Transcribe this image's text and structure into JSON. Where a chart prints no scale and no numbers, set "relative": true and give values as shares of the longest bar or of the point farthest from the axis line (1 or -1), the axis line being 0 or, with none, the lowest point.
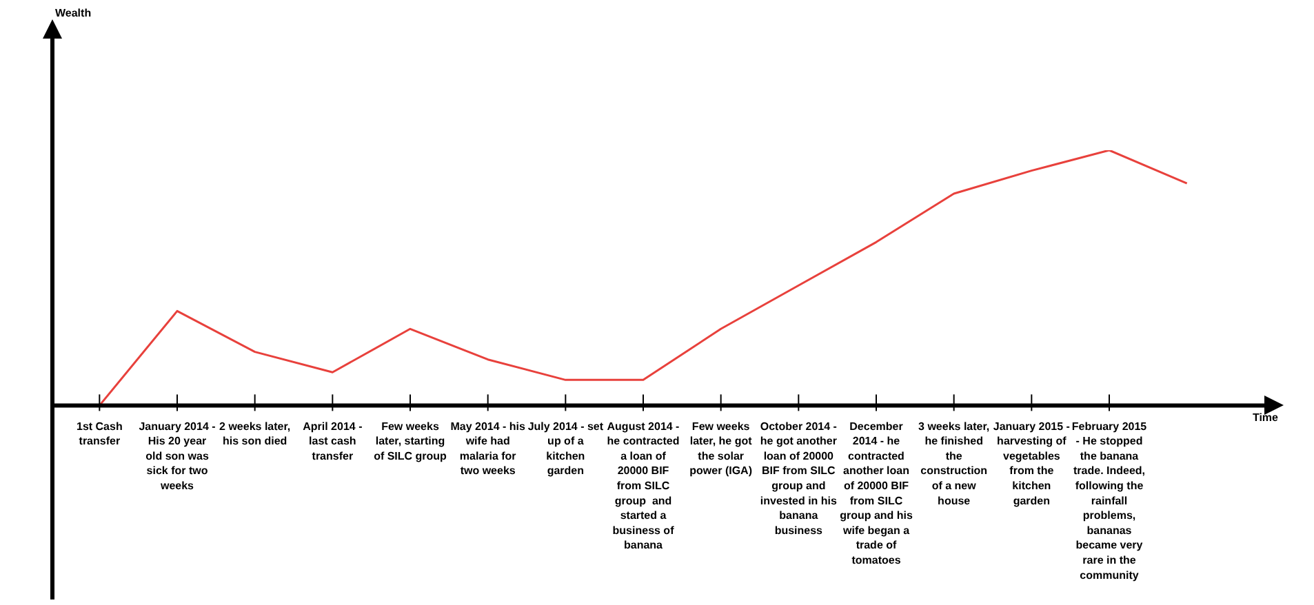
{
  "chart_data": {
    "type": "line",
    "relative": true,
    "xlabel": "Time",
    "annotations": [
      "Wealth"
    ],
    "grid": false,
    "legend": false,
    "marker": "none",
    "line_style": "solid",
    "categories": [
      "1st Cash transfer",
      "January 2014 - His 20 year old son was sick for two weeks",
      "2 weeks later, his son died",
      "April 2014 - last cash transfer",
      "Few weeks later, starting of SILC group",
      "May 2014 - his wife had malaria for two weeks",
      "July 2014 - set up of a kitchen garden",
      "August 2014 - he contracted a loan of 20000 BIF from SILC group  and started a business of banana",
      "Few weeks later, he got the solar power (IGA)",
      "October 2014 - he got another loan of 20000 BIF from SILC group and invested in his banana business",
      "December 2014 - he contracted another loan of 20000 BIF from SILC group and his wife began a trade of tomatoes",
      "3 weeks later, he finished the construction of a new house",
      "January 2015 - harvesting of vegetables from the kitchen garden",
      "February 2015 - He stopped the banana trade. Indeed, following the rainfall problems, bananas became very rare in the community",
      null
    ],
    "series": [
      {
        "color": "#e8413c",
        "values": [
          0,
          0.37,
          0.21,
          0.13,
          0.3,
          0.18,
          0.1,
          0.1,
          0.3,
          0.47,
          0.64,
          0.83,
          0.92,
          1,
          0.87
        ]
      }
    ]
  }
}
